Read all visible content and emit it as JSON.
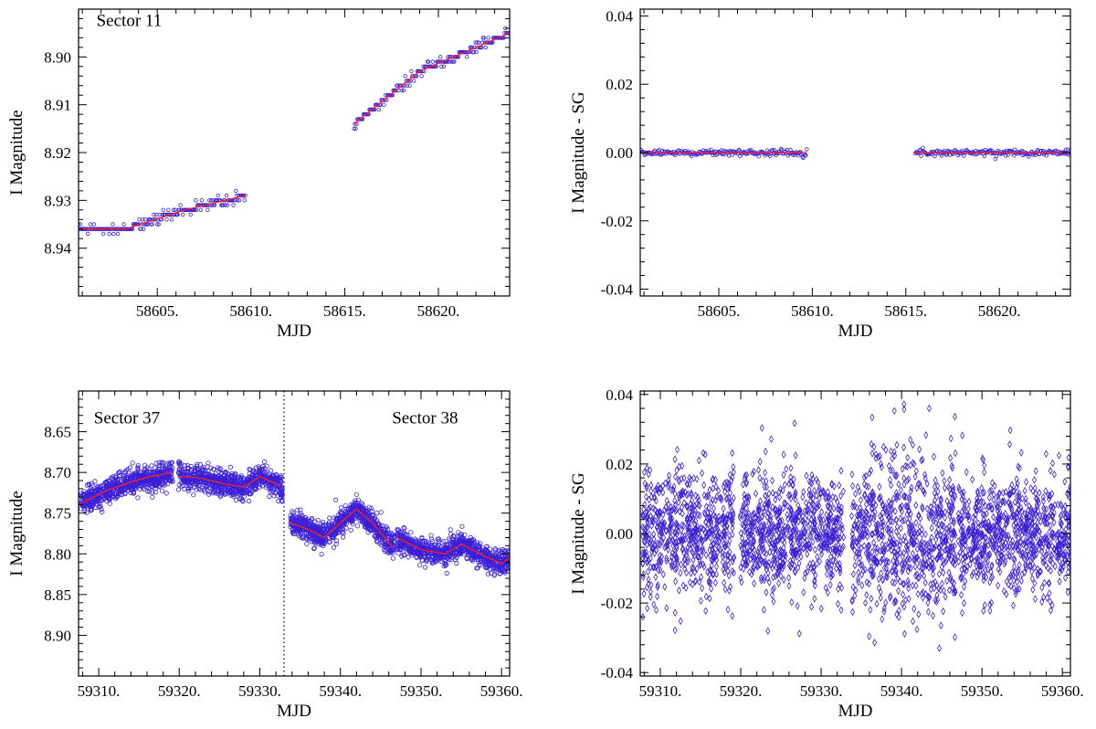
{
  "colors": {
    "points": "#3b1fd6",
    "fit": "#ff2020",
    "axes": "#000000"
  },
  "chart_data": [
    {
      "id": "top-left",
      "type": "scatter",
      "xlabel": "MJD",
      "ylabel": "I Magnitude",
      "xlim": [
        58600.8,
        58623.8
      ],
      "ylim": [
        8.95,
        8.89
      ],
      "y_inverted": true,
      "xticks": [
        58605,
        58610,
        58615,
        58620
      ],
      "xtick_labels": [
        "58605.",
        "58610.",
        "58615.",
        "58620."
      ],
      "yticks": [
        8.9,
        8.91,
        8.92,
        8.93,
        8.94
      ],
      "ytick_labels": [
        "8.90",
        "8.91",
        "8.92",
        "8.93",
        "8.94"
      ],
      "annotations": [
        {
          "text": "Sector 11",
          "x": 58603.5,
          "y": 8.8935
        }
      ],
      "vlines": [],
      "trend_segments": [
        {
          "x": [
            58600.8,
            58603.3,
            58606.5,
            58609.7
          ],
          "y": [
            8.936,
            8.936,
            8.932,
            8.929
          ]
        },
        {
          "x": [
            58615.5,
            58619.0,
            58623.8
          ],
          "y": [
            8.914,
            8.903,
            8.895
          ]
        }
      ],
      "point_style": "small-circle",
      "grid": false
    },
    {
      "id": "top-right",
      "type": "scatter",
      "xlabel": "MJD",
      "ylabel": "I Magnitude - SG",
      "xlim": [
        58600.8,
        58623.8
      ],
      "ylim": [
        -0.042,
        0.042
      ],
      "y_inverted": false,
      "xticks": [
        58605,
        58610,
        58615,
        58620
      ],
      "xtick_labels": [
        "58605.",
        "58610.",
        "58615.",
        "58620."
      ],
      "yticks": [
        0.04,
        0.02,
        0.0,
        -0.02,
        -0.04
      ],
      "ytick_labels": [
        "0.04",
        "0.02",
        "0.00",
        "-0.02",
        "-0.04"
      ],
      "annotations": [],
      "vlines": [],
      "trend_segments": [
        {
          "x": [
            58600.8,
            58609.7
          ],
          "y": [
            0.0,
            0.0
          ]
        },
        {
          "x": [
            58615.5,
            58623.8
          ],
          "y": [
            0.0,
            0.0
          ]
        }
      ],
      "point_style": "small-circle",
      "grid": false
    },
    {
      "id": "bottom-left",
      "type": "scatter",
      "xlabel": "MJD",
      "ylabel": "I Magnitude",
      "xlim": [
        59307.5,
        59361
      ],
      "ylim": [
        8.95,
        8.6
      ],
      "y_inverted": true,
      "xticks": [
        59310,
        59320,
        59330,
        59340,
        59350,
        59360
      ],
      "xtick_labels": [
        "59310.",
        "59320.",
        "59330.",
        "59340.",
        "59350.",
        "59360."
      ],
      "yticks": [
        8.65,
        8.7,
        8.75,
        8.8,
        8.85,
        8.9
      ],
      "ytick_labels": [
        "8.65",
        "8.70",
        "8.75",
        "8.80",
        "8.85",
        "8.90"
      ],
      "annotations": [
        {
          "text": "Sector 37",
          "x": 59313.5,
          "y": 8.64
        },
        {
          "text": "Sector 38",
          "x": 59350.5,
          "y": 8.64
        }
      ],
      "vlines": [
        59333
      ],
      "trend_segments": [
        {
          "x": [
            59307.8,
            59311,
            59314,
            59316,
            59319
          ],
          "y": [
            8.738,
            8.722,
            8.712,
            8.706,
            8.7
          ]
        },
        {
          "x": [
            59320,
            59322,
            59324,
            59326,
            59328,
            59330,
            59332.5
          ],
          "y": [
            8.705,
            8.706,
            8.71,
            8.715,
            8.718,
            8.705,
            8.716
          ]
        },
        {
          "x": [
            59333.8,
            59336,
            59338,
            59340,
            59342,
            59344,
            59346.5
          ],
          "y": [
            8.762,
            8.77,
            8.78,
            8.762,
            8.745,
            8.762,
            8.792
          ]
        },
        {
          "x": [
            59347,
            59350,
            59353,
            59355,
            59358,
            59360,
            59361
          ],
          "y": [
            8.78,
            8.795,
            8.8,
            8.788,
            8.803,
            8.812,
            8.805
          ]
        }
      ],
      "point_style": "circle",
      "grid": false
    },
    {
      "id": "bottom-right",
      "type": "scatter",
      "xlabel": "MJD",
      "ylabel": "I Magnitude - SG",
      "xlim": [
        59307.5,
        59361
      ],
      "ylim": [
        -0.041,
        0.041
      ],
      "y_inverted": false,
      "xticks": [
        59310,
        59320,
        59330,
        59340,
        59350,
        59360
      ],
      "xtick_labels": [
        "59310.",
        "59320.",
        "59330.",
        "59340.",
        "59350.",
        "59360."
      ],
      "yticks": [
        0.04,
        0.02,
        0.0,
        -0.02,
        -0.04
      ],
      "ytick_labels": [
        "0.04",
        "0.02",
        "0.00",
        "-0.02",
        "-0.04"
      ],
      "annotations": [],
      "vlines": [],
      "trend_segments": [],
      "point_style": "diamond",
      "grid": false
    }
  ]
}
